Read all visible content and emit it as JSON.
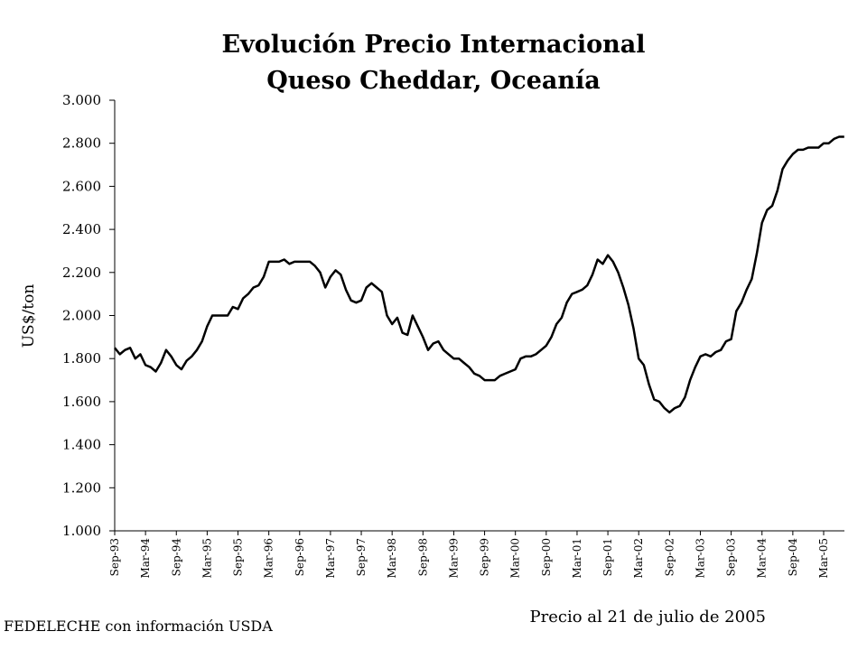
{
  "chart_data": {
    "type": "line",
    "title": [
      "Evolución Precio Internacional",
      "Queso Cheddar, Oceanía"
    ],
    "y_label": "US$/ton",
    "annotation": "Precio al 21 de julio de 2005",
    "source": "FEDELECHE con información USDA",
    "categories": [
      "Sep-93",
      null,
      null,
      null,
      null,
      null,
      "Mar-94",
      null,
      null,
      null,
      null,
      null,
      "Sep-94",
      null,
      null,
      null,
      null,
      null,
      "Mar-95",
      null,
      null,
      null,
      null,
      null,
      "Sep-95",
      null,
      null,
      null,
      null,
      null,
      "Mar-96",
      null,
      null,
      null,
      null,
      null,
      "Sep-96",
      null,
      null,
      null,
      null,
      null,
      "Mar-97",
      null,
      null,
      null,
      null,
      null,
      "Sep-97",
      null,
      null,
      null,
      null,
      null,
      "Mar-98",
      null,
      null,
      null,
      null,
      null,
      "Sep-98",
      null,
      null,
      null,
      null,
      null,
      "Mar-99",
      null,
      null,
      null,
      null,
      null,
      "Sep-99",
      null,
      null,
      null,
      null,
      null,
      "Mar-00",
      null,
      null,
      null,
      null,
      null,
      "Sep-00",
      null,
      null,
      null,
      null,
      null,
      "Mar-01",
      null,
      null,
      null,
      null,
      null,
      "Sep-01",
      null,
      null,
      null,
      null,
      null,
      "Mar-02",
      null,
      null,
      null,
      null,
      null,
      "Sep-02",
      null,
      null,
      null,
      null,
      null,
      "Mar-03",
      null,
      null,
      null,
      null,
      null,
      "Sep-03",
      null,
      null,
      null,
      null,
      null,
      "Mar-04",
      null,
      null,
      null,
      null,
      null,
      "Sep-04",
      null,
      null,
      null,
      null,
      null,
      "Mar-05",
      null,
      null,
      null,
      null
    ],
    "series": [
      {
        "name": "Queso Cheddar",
        "color": "#000000",
        "values": [
          1850,
          1820,
          1840,
          1850,
          1800,
          1820,
          1770,
          1760,
          1740,
          1780,
          1840,
          1810,
          1770,
          1750,
          1790,
          1810,
          1840,
          1880,
          1950,
          2000,
          2000,
          2000,
          2000,
          2040,
          2030,
          2080,
          2100,
          2130,
          2140,
          2180,
          2250,
          2250,
          2250,
          2260,
          2240,
          2250,
          2250,
          2250,
          2250,
          2230,
          2200,
          2130,
          2180,
          2210,
          2190,
          2120,
          2070,
          2060,
          2070,
          2130,
          2150,
          2130,
          2110,
          2000,
          1960,
          1990,
          1920,
          1910,
          2000,
          1950,
          1900,
          1840,
          1870,
          1880,
          1840,
          1820,
          1800,
          1800,
          1780,
          1760,
          1730,
          1720,
          1700,
          1700,
          1700,
          1720,
          1730,
          1740,
          1750,
          1800,
          1810,
          1810,
          1820,
          1840,
          1860,
          1900,
          1960,
          1990,
          2060,
          2100,
          2110,
          2120,
          2140,
          2190,
          2260,
          2240,
          2280,
          2250,
          2200,
          2130,
          2050,
          1940,
          1800,
          1770,
          1680,
          1610,
          1600,
          1570,
          1550,
          1570,
          1580,
          1620,
          1700,
          1760,
          1810,
          1820,
          1810,
          1830,
          1840,
          1880,
          1890,
          2020,
          2060,
          2120,
          2170,
          2290,
          2430,
          2490,
          2510,
          2580,
          2680,
          2720,
          2750,
          2770,
          2770,
          2780,
          2780,
          2780,
          2800,
          2800,
          2820,
          2830,
          2830
        ]
      }
    ],
    "ylim": [
      1000,
      3000
    ],
    "yticks": [
      {
        "value": 1000,
        "label": "1.000"
      },
      {
        "value": 1200,
        "label": "1.200"
      },
      {
        "value": 1400,
        "label": "1.400"
      },
      {
        "value": 1600,
        "label": "1.600"
      },
      {
        "value": 1800,
        "label": "1.800"
      },
      {
        "value": 2000,
        "label": "2.000"
      },
      {
        "value": 2200,
        "label": "2.200"
      },
      {
        "value": 2400,
        "label": "2.400"
      },
      {
        "value": 2600,
        "label": "2.600"
      },
      {
        "value": 2800,
        "label": "2.800"
      },
      {
        "value": 3000,
        "label": "3.000"
      }
    ],
    "grid": false
  }
}
